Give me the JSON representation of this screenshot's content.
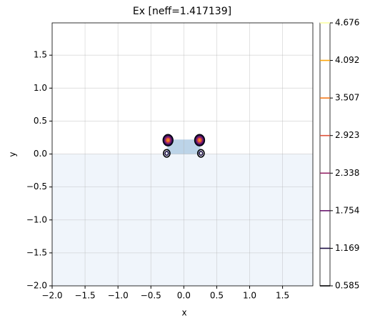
{
  "chart_data": {
    "type": "contour",
    "title": "Ex [neff=1.417139]",
    "x_label": "x",
    "y_label": "y",
    "xlim": [
      -2,
      1.96
    ],
    "ylim": [
      -2,
      1.99
    ],
    "xticks": [
      {
        "value": -2,
        "label": "−2.0"
      },
      {
        "value": -1.5,
        "label": "−1.5"
      },
      {
        "value": -1,
        "label": "−1.0"
      },
      {
        "value": -0.5,
        "label": "−0.5"
      },
      {
        "value": 0,
        "label": "0.0"
      },
      {
        "value": 0.5,
        "label": "0.5"
      },
      {
        "value": 1,
        "label": "1.0"
      },
      {
        "value": 1.5,
        "label": "1.5"
      }
    ],
    "yticks": [
      {
        "value": -2,
        "label": "−2.0"
      },
      {
        "value": -1.5,
        "label": "−1.5"
      },
      {
        "value": -1,
        "label": "−1.0"
      },
      {
        "value": -0.5,
        "label": "−0.5"
      },
      {
        "value": 0,
        "label": "0.0"
      },
      {
        "value": 0.5,
        "label": "0.5"
      },
      {
        "value": 1,
        "label": "1.0"
      },
      {
        "value": 1.5,
        "label": "1.5"
      }
    ],
    "grid": true,
    "substrate": {
      "y": [
        -2,
        0
      ],
      "color": "#f0f5fb"
    },
    "core": {
      "x": [
        -0.25,
        0.25
      ],
      "y": [
        0,
        0.22
      ],
      "color": "#bcd4e8"
    },
    "levels": [
      0.585,
      1.169,
      1.754,
      2.338,
      2.923,
      3.507,
      4.092,
      4.676
    ],
    "level_colors": [
      "#000004",
      "#1b0c41",
      "#6a176e",
      "#932667",
      "#dd513a",
      "#f37819",
      "#fca50a",
      "#fcffa4"
    ],
    "clim": [
      0.585,
      4.676
    ],
    "peaks": [
      {
        "x": -0.24,
        "y": 0.21,
        "value": 3.507
      },
      {
        "x": 0.24,
        "y": 0.21,
        "value": 3.507
      },
      {
        "x": -0.26,
        "y": 0.01,
        "value": 1.169
      },
      {
        "x": 0.26,
        "y": 0.01,
        "value": 1.169
      }
    ]
  }
}
